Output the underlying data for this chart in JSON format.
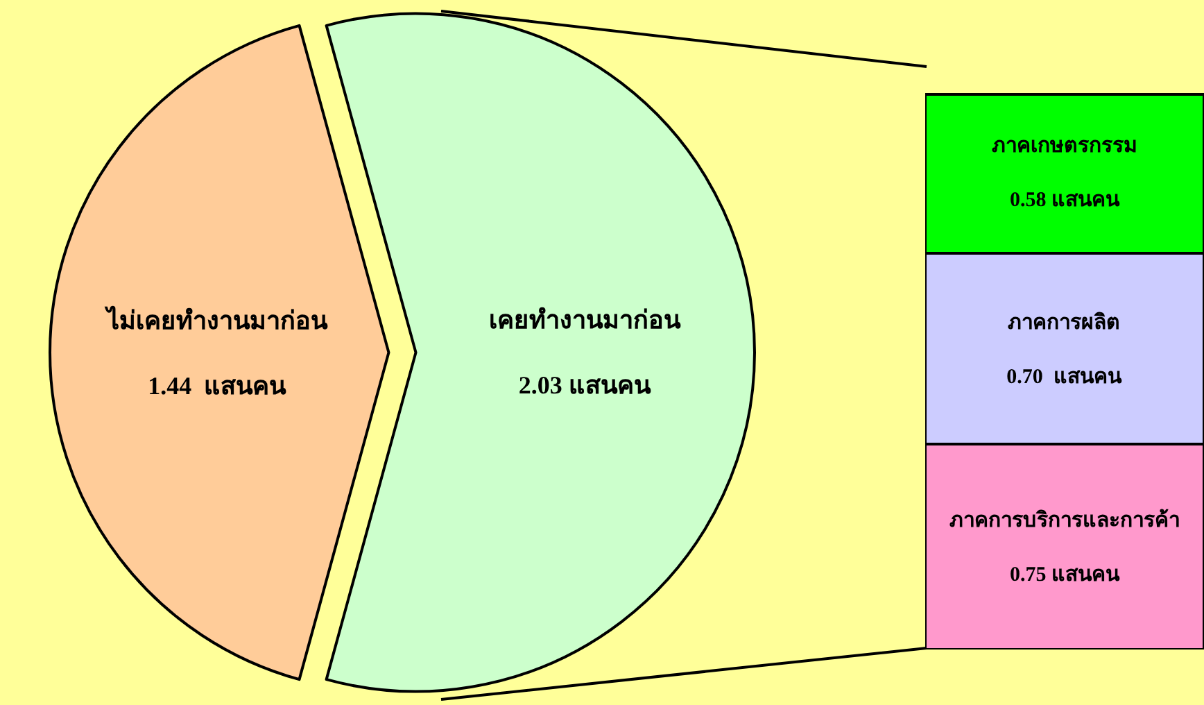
{
  "chart_data": [
    {
      "type": "pie",
      "categories": [
        "ไม่เคยทำงานมาก่อน",
        "เคยทำงานมาก่อน"
      ],
      "values": [
        1.44,
        2.03
      ],
      "value_labels": [
        "1.44  แสนคน",
        "2.03 แสนคน"
      ],
      "colors": [
        "#ffcc99",
        "#ccffcc"
      ],
      "legend": false
    },
    {
      "type": "bar",
      "stacked": true,
      "categories": [
        null
      ],
      "legend": false,
      "series": [
        {
          "name": "ภาคการบริการและการค้า",
          "color": "#ff99cc",
          "values": [
            0.75
          ],
          "value_labels": [
            "0.75 แสนคน"
          ]
        },
        {
          "name": "ภาคการผลิต",
          "color": "#ccccff",
          "values": [
            0.7
          ],
          "value_labels": [
            "0.70  แสนคน"
          ]
        },
        {
          "name": "ภาคเกษตรกรรม",
          "color": "#00ff00",
          "values": [
            0.58
          ],
          "value_labels": [
            "0.58 แสนคน"
          ]
        }
      ]
    }
  ]
}
